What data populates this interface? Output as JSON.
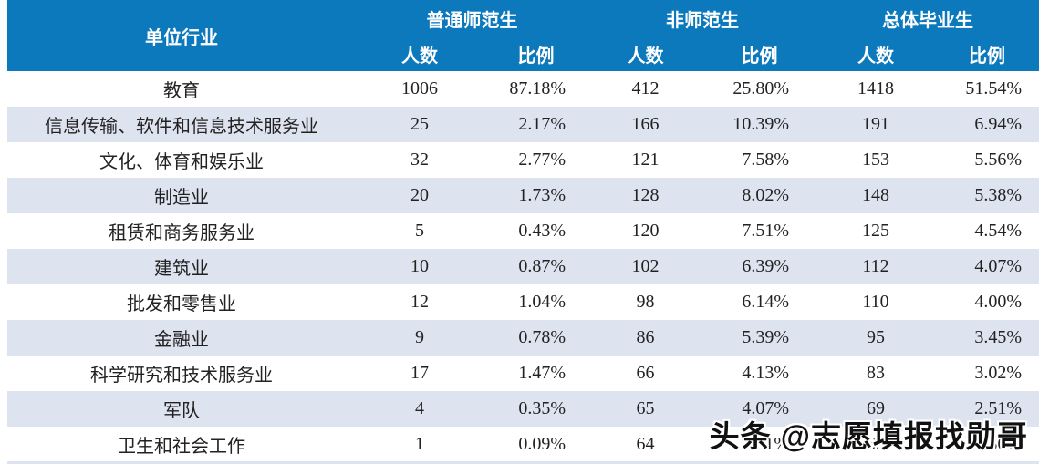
{
  "colors": {
    "header_bg": "#0d79bd",
    "header_text": "#ffffff",
    "row_alt_bg": "#dee3f0",
    "body_text": "#222222",
    "watermark_text": "#111111",
    "watermark_outline": "#ffffff"
  },
  "watermark": {
    "text": "头条 @志愿填报找勋哥"
  },
  "chart_data": {
    "type": "table",
    "title": "",
    "header": {
      "industry_label": "单位行业",
      "groups": [
        {
          "label": "普通师范生"
        },
        {
          "label": "非师范生"
        },
        {
          "label": "总体毕业生"
        }
      ],
      "sub_labels": [
        "人数",
        "比例"
      ]
    },
    "columns": [
      "单位行业",
      "普通师范生-人数",
      "普通师范生-比例",
      "非师范生-人数",
      "非师范生-比例",
      "总体毕业生-人数",
      "总体毕业生-比例"
    ],
    "rows": [
      [
        "教育",
        "1006",
        "87.18%",
        "412",
        "25.80%",
        "1418",
        "51.54%"
      ],
      [
        "信息传输、软件和信息技术服务业",
        "25",
        "2.17%",
        "166",
        "10.39%",
        "191",
        "6.94%"
      ],
      [
        "文化、体育和娱乐业",
        "32",
        "2.77%",
        "121",
        "7.58%",
        "153",
        "5.56%"
      ],
      [
        "制造业",
        "20",
        "1.73%",
        "128",
        "8.02%",
        "148",
        "5.38%"
      ],
      [
        "租赁和商务服务业",
        "5",
        "0.43%",
        "120",
        "7.51%",
        "125",
        "4.54%"
      ],
      [
        "建筑业",
        "10",
        "0.87%",
        "102",
        "6.39%",
        "112",
        "4.07%"
      ],
      [
        "批发和零售业",
        "12",
        "1.04%",
        "98",
        "6.14%",
        "110",
        "4.00%"
      ],
      [
        "金融业",
        "9",
        "0.78%",
        "86",
        "5.39%",
        "95",
        "3.45%"
      ],
      [
        "科学研究和技术服务业",
        "17",
        "1.47%",
        "66",
        "4.13%",
        "83",
        "3.02%"
      ],
      [
        "军队",
        "4",
        "0.35%",
        "65",
        "4.07%",
        "69",
        "2.51%"
      ],
      [
        "卫生和社会工作",
        "1",
        "0.09%",
        "64",
        "4.01%",
        "65",
        "2.36%"
      ]
    ]
  }
}
